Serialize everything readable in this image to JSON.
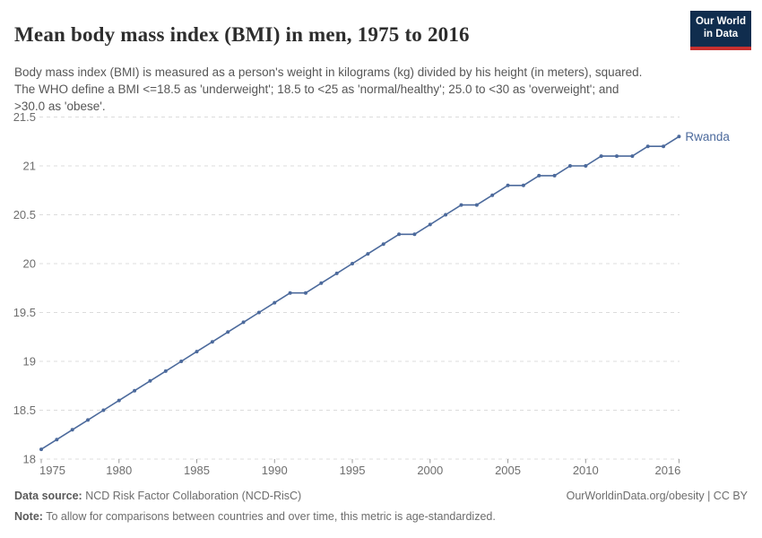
{
  "header": {
    "title": "Mean body mass index (BMI) in men, 1975 to 2016",
    "subtitle": "Body mass index (BMI) is measured as a person's weight in kilograms (kg) divided by his height (in meters), squared. The WHO define a BMI <=18.5 as 'underweight'; 18.5 to <25 as 'normal/healthy'; 25.0 to <30 as 'overweight'; and >30.0 as 'obese'.",
    "logo": {
      "line1": "Our World",
      "line2": "in Data"
    }
  },
  "colors": {
    "line": "#4c6a9c",
    "end_label": "#4c6a9c",
    "grid": "#dcdcdc",
    "axis_text": "#6e6e6e",
    "tick": "#9a9a9a",
    "logo_bg": "#102d4e",
    "logo_stripe": "#c7302f"
  },
  "chart_data": {
    "type": "line",
    "title": "Mean body mass index (BMI) in men, 1975 to 2016",
    "xlabel": "",
    "ylabel": "",
    "x": [
      1975,
      1976,
      1977,
      1978,
      1979,
      1980,
      1981,
      1982,
      1983,
      1984,
      1985,
      1986,
      1987,
      1988,
      1989,
      1990,
      1991,
      1992,
      1993,
      1994,
      1995,
      1996,
      1997,
      1998,
      1999,
      2000,
      2001,
      2002,
      2003,
      2004,
      2005,
      2006,
      2007,
      2008,
      2009,
      2010,
      2011,
      2012,
      2013,
      2014,
      2015,
      2016
    ],
    "series": [
      {
        "name": "Rwanda",
        "values": [
          18.1,
          18.2,
          18.3,
          18.4,
          18.5,
          18.6,
          18.7,
          18.8,
          18.9,
          19.0,
          19.1,
          19.2,
          19.3,
          19.4,
          19.5,
          19.6,
          19.7,
          19.7,
          19.8,
          19.9,
          20.0,
          20.1,
          20.2,
          20.3,
          20.3,
          20.4,
          20.5,
          20.6,
          20.6,
          20.7,
          20.8,
          20.8,
          20.9,
          20.9,
          21.0,
          21.0,
          21.1,
          21.1,
          21.1,
          21.2,
          21.2,
          21.3
        ]
      }
    ],
    "xlim": [
      1975,
      2016
    ],
    "ylim": [
      18,
      21.5
    ],
    "yticks": [
      18,
      18.5,
      19,
      19.5,
      20,
      20.5,
      21,
      21.5
    ],
    "xticks": [
      1975,
      1980,
      1985,
      1990,
      1995,
      2000,
      2005,
      2010,
      2016
    ],
    "grid": "horizontal-dashed",
    "legend_position": "end-of-line",
    "end_label": "Rwanda"
  },
  "footer": {
    "source_label": "Data source:",
    "source_text": " NCD Risk Factor Collaboration (NCD-RisC)",
    "note_label": "Note:",
    "note_text": " To allow for comparisons between countries and over time, this metric is age-standardized.",
    "right_text": "OurWorldinData.org/obesity | CC BY"
  }
}
